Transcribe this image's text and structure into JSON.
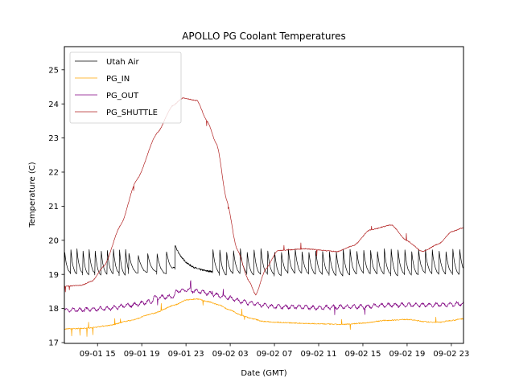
{
  "chart_data": {
    "type": "line",
    "title": "APOLLO PG Coolant Temperatures",
    "xlabel": "Date (GMT)",
    "ylabel": "Temperature (C)",
    "x_unit": "hours since 09-01 12:00 GMT",
    "xlim": [
      0,
      36.1
    ],
    "ylim": [
      17,
      25.7
    ],
    "yticks": [
      17,
      18,
      19,
      20,
      21,
      22,
      23,
      24,
      25
    ],
    "xticks": [
      {
        "x": 3,
        "label": "09-01 15"
      },
      {
        "x": 7,
        "label": "09-01 19"
      },
      {
        "x": 11,
        "label": "09-01 23"
      },
      {
        "x": 15,
        "label": "09-02 03"
      },
      {
        "x": 19,
        "label": "09-02 07"
      },
      {
        "x": 23,
        "label": "09-02 11"
      },
      {
        "x": 27,
        "label": "09-02 15"
      },
      {
        "x": 31,
        "label": "09-02 19"
      },
      {
        "x": 35,
        "label": "09-02 23"
      }
    ],
    "grid": false,
    "legend_position": "top-left",
    "series": [
      {
        "name": "Utah Air",
        "color": "#000000",
        "pattern": "sawtooth",
        "segments": [
          {
            "x0": 0.0,
            "x1": 5.8,
            "period": 0.55,
            "high": 19.7,
            "low": 19.0
          },
          {
            "x0": 5.8,
            "x1": 9.8,
            "period": 0.85,
            "high": 19.6,
            "low": 19.05
          },
          {
            "x0": 9.8,
            "x1": 10.0,
            "flat": 19.2
          },
          {
            "x0": 10.0,
            "x1": 13.4,
            "decay_from": 19.85,
            "decay_to": 19.05
          },
          {
            "x0": 13.4,
            "x1": 36.1,
            "period": 0.62,
            "high": 19.7,
            "low": 19.0
          }
        ]
      },
      {
        "name": "PG_IN",
        "color": "#FFA500",
        "x": [
          0,
          2,
          4,
          6,
          8,
          10,
          11,
          12,
          13,
          14,
          15,
          16,
          17,
          18,
          19,
          21,
          23,
          25,
          27,
          29,
          31,
          33,
          34,
          35,
          36.1
        ],
        "y": [
          17.4,
          17.42,
          17.5,
          17.65,
          17.85,
          18.1,
          18.25,
          18.28,
          18.2,
          18.1,
          17.95,
          17.8,
          17.7,
          17.62,
          17.6,
          17.57,
          17.55,
          17.53,
          17.57,
          17.65,
          17.68,
          17.6,
          17.6,
          17.65,
          17.7
        ]
      },
      {
        "name": "PG_OUT",
        "color": "#800080",
        "x": [
          0,
          2,
          4,
          6,
          7.9,
          8.1,
          9.9,
          10.1,
          11,
          12,
          13,
          14,
          15,
          16,
          17,
          18,
          19,
          21,
          23,
          25,
          27,
          29,
          31,
          33,
          35,
          36.1
        ],
        "y": [
          17.95,
          17.97,
          18.0,
          18.1,
          18.2,
          18.32,
          18.35,
          18.5,
          18.55,
          18.5,
          18.45,
          18.38,
          18.3,
          18.2,
          18.15,
          18.1,
          18.05,
          18.05,
          18.02,
          18.05,
          18.05,
          18.1,
          18.1,
          18.1,
          18.12,
          18.15
        ]
      },
      {
        "name": "PG_SHUTTLE",
        "color": "#B22222",
        "x": [
          0,
          1.5,
          2.5,
          3.6,
          5.1,
          6.5,
          8.4,
          9.8,
          10.7,
          12.0,
          12.9,
          13.8,
          14.7,
          15.6,
          16.7,
          17.3,
          18.2,
          19.3,
          21.8,
          24.7,
          26.2,
          27.6,
          29.6,
          30.9,
          32.4,
          33.9,
          35.0,
          36.1
        ],
        "y": [
          18.65,
          18.68,
          18.8,
          19.25,
          20.45,
          21.75,
          23.15,
          23.95,
          24.17,
          24.1,
          23.5,
          22.8,
          21.15,
          19.75,
          18.8,
          18.4,
          19.15,
          19.7,
          19.75,
          19.67,
          19.85,
          20.3,
          20.45,
          20.0,
          19.67,
          19.9,
          20.25,
          20.37
        ]
      }
    ]
  }
}
